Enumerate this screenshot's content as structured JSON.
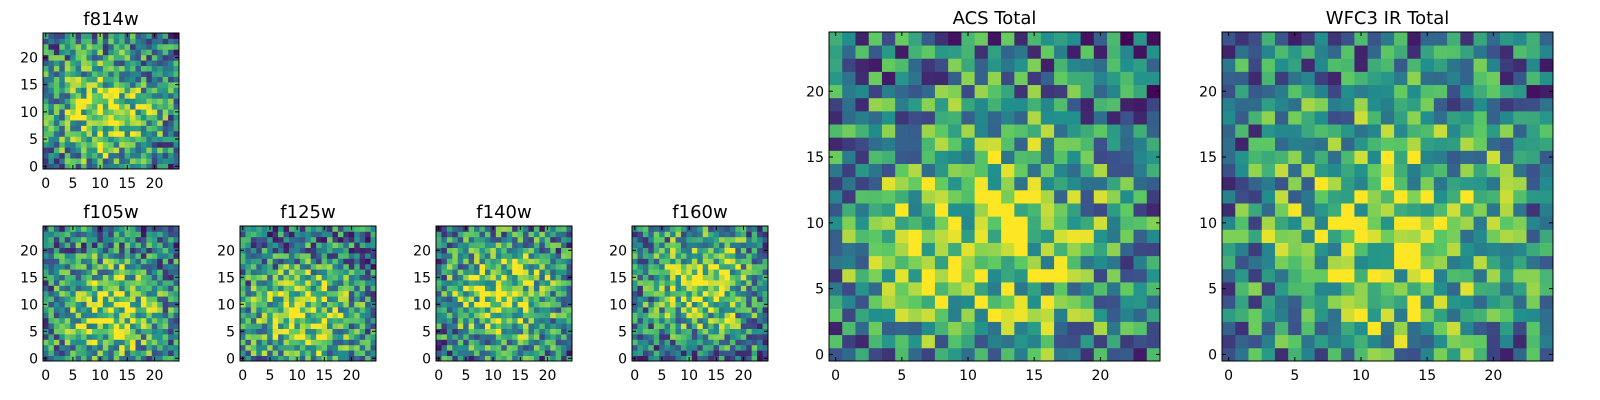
{
  "chart_data": [
    {
      "type": "heatmap",
      "title": "f814w",
      "grid_size": 25,
      "xticks": [
        "0",
        "5",
        "10",
        "15",
        "20"
      ],
      "yticks": [
        "0",
        "5",
        "10",
        "15",
        "20"
      ],
      "colormap": [
        "#440154",
        "#3b528b",
        "#21908d",
        "#5dc963",
        "#fde725"
      ],
      "peak": [
        11,
        10
      ],
      "seed": 11
    },
    {
      "type": "heatmap",
      "title": "f105w",
      "grid_size": 25,
      "xticks": [
        "0",
        "5",
        "10",
        "15",
        "20"
      ],
      "yticks": [
        "0",
        "5",
        "10",
        "15",
        "20"
      ],
      "colormap": [
        "#440154",
        "#3b528b",
        "#21908d",
        "#5dc963",
        "#fde725"
      ],
      "peak": [
        12,
        9
      ],
      "seed": 23
    },
    {
      "type": "heatmap",
      "title": "f125w",
      "grid_size": 25,
      "xticks": [
        "0",
        "5",
        "10",
        "15",
        "20"
      ],
      "yticks": [
        "0",
        "5",
        "10",
        "15",
        "20"
      ],
      "colormap": [
        "#440154",
        "#3b528b",
        "#21908d",
        "#5dc963",
        "#fde725"
      ],
      "peak": [
        11,
        8
      ],
      "seed": 37
    },
    {
      "type": "heatmap",
      "title": "f140w",
      "grid_size": 25,
      "xticks": [
        "0",
        "5",
        "10",
        "15",
        "20"
      ],
      "yticks": [
        "0",
        "5",
        "10",
        "15",
        "20"
      ],
      "colormap": [
        "#440154",
        "#3b528b",
        "#21908d",
        "#5dc963",
        "#fde725"
      ],
      "peak": [
        12,
        12
      ],
      "seed": 41
    },
    {
      "type": "heatmap",
      "title": "f160w",
      "grid_size": 25,
      "xticks": [
        "0",
        "5",
        "10",
        "15",
        "20"
      ],
      "yticks": [
        "0",
        "5",
        "10",
        "15",
        "20"
      ],
      "colormap": [
        "#440154",
        "#3b528b",
        "#21908d",
        "#5dc963",
        "#fde725"
      ],
      "peak": [
        13,
        14
      ],
      "seed": 53
    },
    {
      "type": "heatmap",
      "title": "ACS Total",
      "grid_size": 25,
      "xticks": [
        "0",
        "5",
        "10",
        "15",
        "20"
      ],
      "yticks": [
        "0",
        "5",
        "10",
        "15",
        "20"
      ],
      "colormap": [
        "#440154",
        "#3b528b",
        "#21908d",
        "#5dc963",
        "#fde725"
      ],
      "peak": [
        11,
        9
      ],
      "seed": 67
    },
    {
      "type": "heatmap",
      "title": "WFC3 IR Total",
      "grid_size": 25,
      "xticks": [
        "0",
        "5",
        "10",
        "15",
        "20"
      ],
      "yticks": [
        "0",
        "5",
        "10",
        "15",
        "20"
      ],
      "colormap": [
        "#440154",
        "#3b528b",
        "#21908d",
        "#5dc963",
        "#fde725"
      ],
      "peak": [
        12,
        9
      ],
      "seed": 79
    }
  ]
}
